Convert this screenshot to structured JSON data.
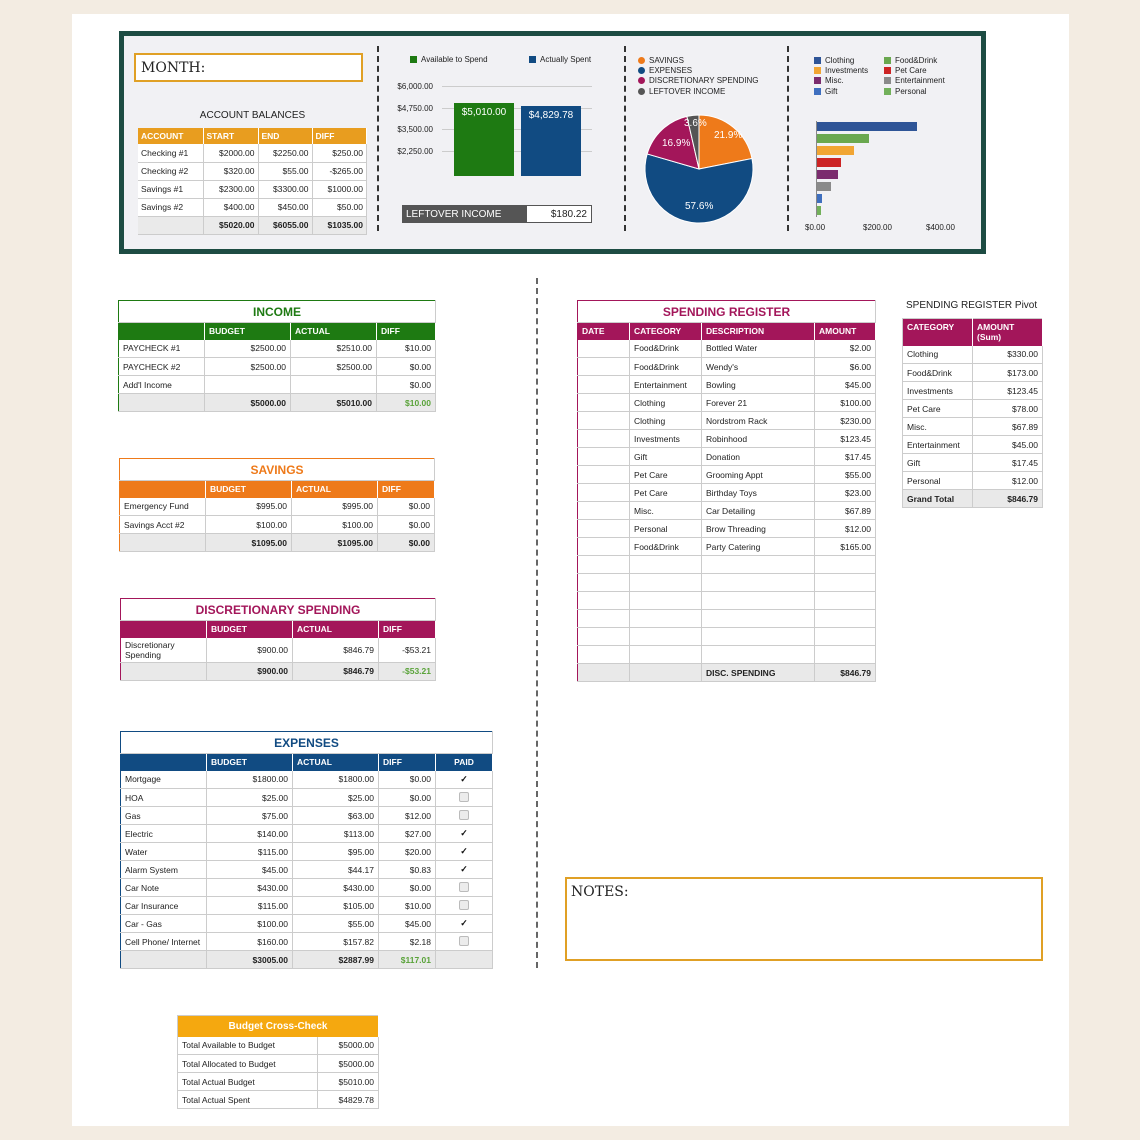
{
  "dashboard": {
    "month_label": "MONTH:",
    "account_balances": {
      "title": "ACCOUNT BALANCES",
      "headers": [
        "ACCOUNT",
        "START",
        "END",
        "DIFF"
      ],
      "rows": [
        [
          "Checking #1",
          "$2000.00",
          "$2250.00",
          "$250.00"
        ],
        [
          "Checking #2",
          "$320.00",
          "$55.00",
          "-$265.00"
        ],
        [
          "Savings #1",
          "$2300.00",
          "$3300.00",
          "$1000.00"
        ],
        [
          "Savings #2",
          "$400.00",
          "$450.00",
          "$50.00"
        ]
      ],
      "total": [
        "",
        "$5020.00",
        "$6055.00",
        "$1035.00"
      ]
    },
    "spend_chart": {
      "legend": [
        "Available to Spend",
        "Actually Spent"
      ],
      "colors": [
        "#1e7a12",
        "#114b82"
      ],
      "y_ticks": [
        "$6,000.00",
        "$4,750.00",
        "$3,500.00",
        "$2,250.00"
      ],
      "bar_labels": [
        "$5,010.00",
        "$4,829.78"
      ]
    },
    "leftover": {
      "label": "LEFTOVER INCOME",
      "value": "$180.22"
    },
    "pie_chart": {
      "legend": [
        "SAVINGS",
        "EXPENSES",
        "DISCRETIONARY SPENDING",
        "LEFTOVER INCOME"
      ],
      "colors": [
        "#ee7a1a",
        "#114b82",
        "#a3165a",
        "#555555"
      ],
      "labels": [
        "21.9%",
        "57.6%",
        "16.9%",
        "3.6%"
      ]
    },
    "hbar_chart": {
      "legend": [
        "Clothing",
        "Food&Drink",
        "Investments",
        "Pet Care",
        "Misc.",
        "Entertainment",
        "Gift",
        "Personal"
      ],
      "colors": [
        "#2f5597",
        "#6aa84f",
        "#f1a533",
        "#cc2424",
        "#7b2c6e",
        "#8a8a8a",
        "#3f6fbf",
        "#72b05a"
      ],
      "x_ticks": [
        "$0.00",
        "$200.00",
        "$400.00"
      ]
    }
  },
  "chart_data": [
    {
      "type": "bar",
      "categories": [
        "Available to Spend",
        "Actually Spent"
      ],
      "values": [
        5010.0,
        4829.78
      ],
      "ylim": [
        0,
        6000
      ]
    },
    {
      "type": "pie",
      "categories": [
        "SAVINGS",
        "EXPENSES",
        "DISCRETIONARY SPENDING",
        "LEFTOVER INCOME"
      ],
      "values": [
        21.9,
        57.6,
        16.9,
        3.6
      ]
    },
    {
      "type": "bar",
      "categories": [
        "Clothing",
        "Food&Drink",
        "Investments",
        "Pet Care",
        "Misc.",
        "Entertainment",
        "Gift",
        "Personal"
      ],
      "values": [
        330.0,
        173.0,
        123.45,
        78.0,
        67.89,
        45.0,
        17.45,
        12.0
      ],
      "xlim": [
        0,
        450
      ]
    }
  ],
  "income": {
    "title": "INCOME",
    "headers": [
      "",
      "BUDGET",
      "ACTUAL",
      "DIFF"
    ],
    "rows": [
      [
        "PAYCHECK #1",
        "$2500.00",
        "$2510.00",
        "$10.00"
      ],
      [
        "PAYCHECK #2",
        "$2500.00",
        "$2500.00",
        "$0.00"
      ],
      [
        "Add'l Income",
        "",
        "",
        "$0.00"
      ]
    ],
    "total": [
      "",
      "$5000.00",
      "$5010.00",
      "$10.00"
    ]
  },
  "savings": {
    "title": "SAVINGS",
    "headers": [
      "",
      "BUDGET",
      "ACTUAL",
      "DIFF"
    ],
    "rows": [
      [
        "Emergency Fund",
        "$995.00",
        "$995.00",
        "$0.00"
      ],
      [
        "Savings Acct #2",
        "$100.00",
        "$100.00",
        "$0.00"
      ]
    ],
    "total": [
      "",
      "$1095.00",
      "$1095.00",
      "$0.00"
    ]
  },
  "discretionary": {
    "title": "DISCRETIONARY SPENDING",
    "headers": [
      "",
      "BUDGET",
      "ACTUAL",
      "DIFF"
    ],
    "rows": [
      [
        "Discretionary Spending",
        "$900.00",
        "$846.79",
        "-$53.21"
      ]
    ],
    "total": [
      "",
      "$900.00",
      "$846.79",
      "-$53.21"
    ]
  },
  "expenses": {
    "title": "EXPENSES",
    "headers": [
      "",
      "BUDGET",
      "ACTUAL",
      "DIFF",
      "PAID"
    ],
    "rows": [
      [
        "Mortgage",
        "$1800.00",
        "$1800.00",
        "$0.00",
        true
      ],
      [
        "HOA",
        "$25.00",
        "$25.00",
        "$0.00",
        false
      ],
      [
        "Gas",
        "$75.00",
        "$63.00",
        "$12.00",
        false
      ],
      [
        "Electric",
        "$140.00",
        "$113.00",
        "$27.00",
        true
      ],
      [
        "Water",
        "$115.00",
        "$95.00",
        "$20.00",
        true
      ],
      [
        "Alarm System",
        "$45.00",
        "$44.17",
        "$0.83",
        true
      ],
      [
        "Car Note",
        "$430.00",
        "$430.00",
        "$0.00",
        false
      ],
      [
        "Car Insurance",
        "$115.00",
        "$105.00",
        "$10.00",
        false
      ],
      [
        "Car - Gas",
        "$100.00",
        "$55.00",
        "$45.00",
        true
      ],
      [
        "Cell Phone/ Internet",
        "$160.00",
        "$157.82",
        "$2.18",
        false
      ]
    ],
    "total": [
      "",
      "$3005.00",
      "$2887.99",
      "$117.01"
    ]
  },
  "crosscheck": {
    "title": "Budget Cross-Check",
    "rows": [
      [
        "Total Available to Budget",
        "$5000.00"
      ],
      [
        "Total Allocated to Budget",
        "$5000.00"
      ],
      [
        "Total Actual Budget",
        "$5010.00"
      ],
      [
        "Total Actual Spent",
        "$4829.78"
      ]
    ]
  },
  "register": {
    "title": "SPENDING REGISTER",
    "headers": [
      "DATE",
      "CATEGORY",
      "DESCRIPTION",
      "AMOUNT"
    ],
    "rows": [
      [
        "",
        "Food&Drink",
        "Bottled Water",
        "$2.00"
      ],
      [
        "",
        "Food&Drink",
        "Wendy's",
        "$6.00"
      ],
      [
        "",
        "Entertainment",
        "Bowling",
        "$45.00"
      ],
      [
        "",
        "Clothing",
        "Forever 21",
        "$100.00"
      ],
      [
        "",
        "Clothing",
        "Nordstrom Rack",
        "$230.00"
      ],
      [
        "",
        "Investments",
        "Robinhood",
        "$123.45"
      ],
      [
        "",
        "Gift",
        "Donation",
        "$17.45"
      ],
      [
        "",
        "Pet Care",
        "Grooming Appt",
        "$55.00"
      ],
      [
        "",
        "Pet Care",
        "Birthday Toys",
        "$23.00"
      ],
      [
        "",
        "Misc.",
        "Car Detailing",
        "$67.89"
      ],
      [
        "",
        "Personal",
        "Brow Threading",
        "$12.00"
      ],
      [
        "",
        "Food&Drink",
        "Party Catering",
        "$165.00"
      ],
      [
        "",
        "",
        "",
        ""
      ],
      [
        "",
        "",
        "",
        ""
      ],
      [
        "",
        "",
        "",
        ""
      ],
      [
        "",
        "",
        "",
        ""
      ],
      [
        "",
        "",
        "",
        ""
      ],
      [
        "",
        "",
        "",
        ""
      ]
    ],
    "total": [
      "",
      "",
      "DISC. SPENDING",
      "$846.79"
    ]
  },
  "pivot": {
    "title": "SPENDING REGISTER Pivot",
    "headers": [
      "CATEGORY",
      "AMOUNT (Sum)"
    ],
    "rows": [
      [
        "Clothing",
        "$330.00"
      ],
      [
        "Food&Drink",
        "$173.00"
      ],
      [
        "Investments",
        "$123.45"
      ],
      [
        "Pet Care",
        "$78.00"
      ],
      [
        "Misc.",
        "$67.89"
      ],
      [
        "Entertainment",
        "$45.00"
      ],
      [
        "Gift",
        "$17.45"
      ],
      [
        "Personal",
        "$12.00"
      ]
    ],
    "total": [
      "Grand Total",
      "$846.79"
    ]
  },
  "notes": {
    "label": "NOTES:"
  }
}
